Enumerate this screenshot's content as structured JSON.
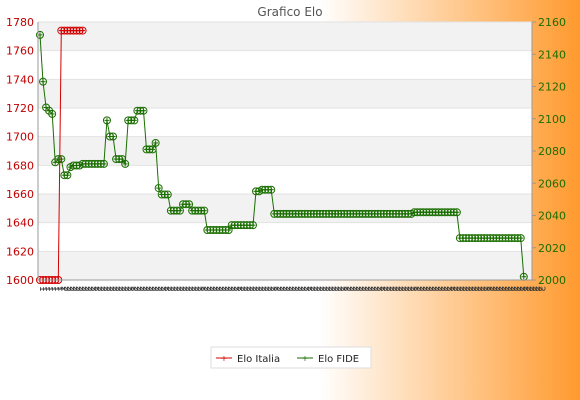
{
  "title": "Grafico Elo",
  "colors": {
    "bg_from": "#ffffff",
    "bg_to": "#ff9a2e",
    "plot_band": "#f2f2f2",
    "italia": "#d40000",
    "fide": "#1a6e00",
    "left_axis": "#c00000",
    "right_axis": "#1a6e00"
  },
  "legend": {
    "items": [
      {
        "name": "Elo Italia",
        "color": "#d40000"
      },
      {
        "name": "Elo FIDE",
        "color": "#1a6e00"
      }
    ]
  },
  "chart_data": {
    "type": "line",
    "title": "Grafico Elo",
    "xlabel": "",
    "ylabel": "",
    "y_left": {
      "min": 1600,
      "max": 1780,
      "step": 20,
      "ticks": [
        1600,
        1620,
        1640,
        1660,
        1680,
        1700,
        1720,
        1740,
        1760,
        1780
      ]
    },
    "y_right": {
      "min": 2000,
      "max": 2160,
      "step": 20,
      "ticks": [
        2000,
        2020,
        2040,
        2060,
        2080,
        2100,
        2120,
        2140,
        2160
      ]
    },
    "grid": true,
    "legend_position": "bottom",
    "x_ticks": [
      "1",
      "1",
      "1",
      "1",
      "1",
      "1",
      "1",
      "2",
      "2",
      "2",
      "2",
      "2",
      "2",
      "2",
      "2",
      "2",
      "2",
      "2",
      "2",
      "2",
      "2",
      "2",
      "2",
      "2",
      "2",
      "2",
      "2",
      "2",
      "2",
      "2",
      "2",
      "2",
      "2",
      "2",
      "2",
      "2",
      "2",
      "2",
      "2",
      "2",
      "2",
      "2",
      "2",
      "2",
      "2",
      "2",
      "2",
      "2",
      "2",
      "2",
      "2",
      "2",
      "2",
      "2",
      "2",
      "2",
      "2",
      "2",
      "2",
      "2",
      "2",
      "2",
      "2",
      "2",
      "2",
      "2",
      "2",
      "2",
      "2",
      "2",
      "2",
      "2",
      "2",
      "2",
      "2",
      "2",
      "2",
      "2",
      "2",
      "2",
      "2",
      "2",
      "2",
      "2",
      "2",
      "2",
      "2",
      "2",
      "2",
      "2",
      "2",
      "2",
      "2",
      "2",
      "2",
      "2",
      "2",
      "2",
      "2",
      "2",
      "2",
      "2",
      "2",
      "2",
      "2",
      "2",
      "2",
      "2",
      "2",
      "2",
      "2",
      "2",
      "2",
      "2",
      "2",
      "2",
      "2",
      "2",
      "2",
      "2",
      "2",
      "2",
      "2",
      "2",
      "2",
      "2",
      "2",
      "2",
      "2",
      "2",
      "2",
      "2",
      "2",
      "2",
      "2",
      "2",
      "2",
      "2",
      "2",
      "2",
      "2",
      "2",
      "2",
      "2",
      "2",
      "2",
      "2",
      "2",
      "2",
      "2",
      "2",
      "2",
      "2",
      "2",
      "2",
      "2",
      "2",
      "2",
      "2",
      "2",
      "2",
      "2",
      "2",
      "2",
      "2"
    ],
    "series": [
      {
        "name": "Elo Italia",
        "axis": "left",
        "values": [
          1600,
          1600,
          1600,
          1600,
          1600,
          1600,
          1600,
          1774,
          1774,
          1774,
          1774,
          1774,
          1774,
          1774,
          1774
        ]
      },
      {
        "name": "Elo FIDE",
        "axis": "right",
        "values": [
          2152,
          2123,
          2107,
          2105,
          2103,
          2073,
          2075,
          2075,
          2065,
          2065,
          2070,
          2071,
          2071,
          2071,
          2072,
          2072,
          2072,
          2072,
          2072,
          2072,
          2072,
          2072,
          2099,
          2089,
          2089,
          2075,
          2075,
          2075,
          2072,
          2099,
          2099,
          2099,
          2105,
          2105,
          2105,
          2081,
          2081,
          2081,
          2085,
          2057,
          2053,
          2053,
          2053,
          2043,
          2043,
          2043,
          2043,
          2047,
          2047,
          2047,
          2043,
          2043,
          2043,
          2043,
          2043,
          2031,
          2031,
          2031,
          2031,
          2031,
          2031,
          2031,
          2031,
          2034,
          2034,
          2034,
          2034,
          2034,
          2034,
          2034,
          2034,
          2055,
          2055,
          2056,
          2056,
          2056,
          2056,
          2041,
          2041,
          2041,
          2041,
          2041,
          2041,
          2041,
          2041,
          2041,
          2041,
          2041,
          2041,
          2041,
          2041,
          2041,
          2041,
          2041,
          2041,
          2041,
          2041,
          2041,
          2041,
          2041,
          2041,
          2041,
          2041,
          2041,
          2041,
          2041,
          2041,
          2041,
          2041,
          2041,
          2041,
          2041,
          2041,
          2041,
          2041,
          2041,
          2041,
          2041,
          2041,
          2041,
          2041,
          2041,
          2041,
          2042,
          2042,
          2042,
          2042,
          2042,
          2042,
          2042,
          2042,
          2042,
          2042,
          2042,
          2042,
          2042,
          2042,
          2042,
          2026,
          2026,
          2026,
          2026,
          2026,
          2026,
          2026,
          2026,
          2026,
          2026,
          2026,
          2026,
          2026,
          2026,
          2026,
          2026,
          2026,
          2026,
          2026,
          2026,
          2026,
          2002
        ]
      }
    ]
  }
}
